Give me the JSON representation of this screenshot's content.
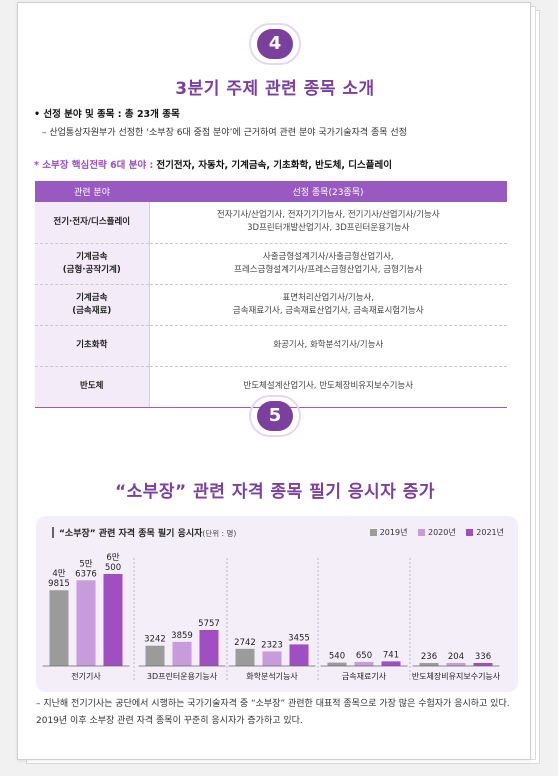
{
  "section4": {
    "number": "4",
    "title": "3분기 주제 관련 종목 소개",
    "bullet": "• 선정 분야 및 종목 : 총 23개 종목",
    "sub": "– 산업통상자원부가 선정한 ‘소부장 6대 중점 분야’에 근거하여 관련 분야 국가기술자격 종목 선정",
    "strategy_label": "* 소부장 핵심전략 6대 분야 :",
    "strategy_value": "전기전자, 자동차, 기계금속, 기초화학, 반도체, 디스플레이",
    "table": {
      "headers": [
        "관련 분야",
        "선정 종목(23종목)"
      ],
      "rows": [
        {
          "field_line1": "전기·전자/디스플레이",
          "field_line2": "",
          "items_line1": "전자기사/산업기사, 전자기기기능사, 전기기사/산업기사/기능사",
          "items_line2": "3D프린터개발산업기사, 3D프린터운용기능사"
        },
        {
          "field_line1": "기계금속",
          "field_line2": "(금형·공작기계)",
          "items_line1": "사출금형설계기사/사출금형산업기사,",
          "items_line2": "프레스금형설계기사/프레스금형산업기사, 금형기능사"
        },
        {
          "field_line1": "기계금속",
          "field_line2": "(금속재료)",
          "items_line1": "표면처리산업기사/기능사,",
          "items_line2": "금속재료기사, 금속재료산업기사, 금속재료시험기능사"
        },
        {
          "field_line1": "기초화학",
          "field_line2": "",
          "items_line1": "화공기사, 화학분석기사/기능사",
          "items_line2": ""
        },
        {
          "field_line1": "반도체",
          "field_line2": "",
          "items_line1": "반도체설계산업기사, 반도체장비유지보수기능사",
          "items_line2": ""
        }
      ]
    }
  },
  "section5": {
    "number": "5",
    "title": "“소부장” 관련 자격 종목 필기 응시자 증가",
    "footnote": "– 지난해 전기기사는 공단에서 시행하는 국가기술자격 중 “소부장” 관련한 대표적 종목으로 가장 많은 수험자가 응시하고 있다. 2019년 이후 소부장 관련 자격 종목이 꾸준히 응시자가 증가하고 있다."
  },
  "chart_data": {
    "type": "bar",
    "title": "“소부장” 관련 자격 종목 필기 응시자",
    "unit": "(단위 : 명)",
    "categories": [
      "전기기사",
      "3D프린터운용기능사",
      "화학분석기능사",
      "금속재료기사",
      "반도체장비유지보수기능사"
    ],
    "series": [
      {
        "name": "2019년",
        "color": "#9b9b9b",
        "values": [
          49815,
          3242,
          2742,
          540,
          236
        ],
        "labels": [
          "4만\n9815",
          "3242",
          "2742",
          "540",
          "236"
        ]
      },
      {
        "name": "2020년",
        "color": "#c79bdc",
        "values": [
          56376,
          3859,
          2323,
          650,
          204
        ],
        "labels": [
          "5만\n6376",
          "3859",
          "2323",
          "650",
          "204"
        ]
      },
      {
        "name": "2021년",
        "color": "#9f4fc2",
        "values": [
          60500,
          5757,
          3455,
          741,
          336
        ],
        "labels": [
          "6만\n500",
          "5757",
          "3455",
          "741",
          "336"
        ]
      }
    ],
    "legend_position": "top-right",
    "grid": false
  }
}
